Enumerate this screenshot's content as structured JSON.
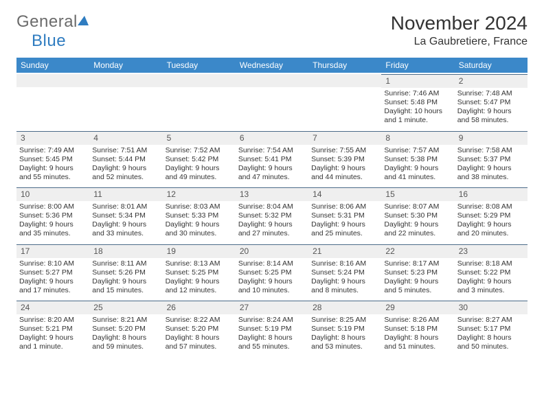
{
  "logo": {
    "text1": "General",
    "text2": "Blue"
  },
  "title": "November 2024",
  "location": "La Gaubretiere, France",
  "colors": {
    "header_bg": "#3b88c9",
    "header_text": "#ffffff",
    "daynum_bg": "#efefef",
    "daynum_border": "#4a6a88",
    "body_text": "#333333",
    "logo_gray": "#6b6b6b",
    "logo_blue": "#2f7cc0"
  },
  "typography": {
    "title_fontsize": 28,
    "location_fontsize": 16,
    "dayhead_fontsize": 12,
    "cell_fontsize": 10.5,
    "logo_fontsize": 24
  },
  "day_headers": [
    "Sunday",
    "Monday",
    "Tuesday",
    "Wednesday",
    "Thursday",
    "Friday",
    "Saturday"
  ],
  "weeks": [
    [
      {
        "n": "",
        "sr": "",
        "ss": "",
        "dl": ""
      },
      {
        "n": "",
        "sr": "",
        "ss": "",
        "dl": ""
      },
      {
        "n": "",
        "sr": "",
        "ss": "",
        "dl": ""
      },
      {
        "n": "",
        "sr": "",
        "ss": "",
        "dl": ""
      },
      {
        "n": "",
        "sr": "",
        "ss": "",
        "dl": ""
      },
      {
        "n": "1",
        "sr": "Sunrise: 7:46 AM",
        "ss": "Sunset: 5:48 PM",
        "dl": "Daylight: 10 hours and 1 minute."
      },
      {
        "n": "2",
        "sr": "Sunrise: 7:48 AM",
        "ss": "Sunset: 5:47 PM",
        "dl": "Daylight: 9 hours and 58 minutes."
      }
    ],
    [
      {
        "n": "3",
        "sr": "Sunrise: 7:49 AM",
        "ss": "Sunset: 5:45 PM",
        "dl": "Daylight: 9 hours and 55 minutes."
      },
      {
        "n": "4",
        "sr": "Sunrise: 7:51 AM",
        "ss": "Sunset: 5:44 PM",
        "dl": "Daylight: 9 hours and 52 minutes."
      },
      {
        "n": "5",
        "sr": "Sunrise: 7:52 AM",
        "ss": "Sunset: 5:42 PM",
        "dl": "Daylight: 9 hours and 49 minutes."
      },
      {
        "n": "6",
        "sr": "Sunrise: 7:54 AM",
        "ss": "Sunset: 5:41 PM",
        "dl": "Daylight: 9 hours and 47 minutes."
      },
      {
        "n": "7",
        "sr": "Sunrise: 7:55 AM",
        "ss": "Sunset: 5:39 PM",
        "dl": "Daylight: 9 hours and 44 minutes."
      },
      {
        "n": "8",
        "sr": "Sunrise: 7:57 AM",
        "ss": "Sunset: 5:38 PM",
        "dl": "Daylight: 9 hours and 41 minutes."
      },
      {
        "n": "9",
        "sr": "Sunrise: 7:58 AM",
        "ss": "Sunset: 5:37 PM",
        "dl": "Daylight: 9 hours and 38 minutes."
      }
    ],
    [
      {
        "n": "10",
        "sr": "Sunrise: 8:00 AM",
        "ss": "Sunset: 5:36 PM",
        "dl": "Daylight: 9 hours and 35 minutes."
      },
      {
        "n": "11",
        "sr": "Sunrise: 8:01 AM",
        "ss": "Sunset: 5:34 PM",
        "dl": "Daylight: 9 hours and 33 minutes."
      },
      {
        "n": "12",
        "sr": "Sunrise: 8:03 AM",
        "ss": "Sunset: 5:33 PM",
        "dl": "Daylight: 9 hours and 30 minutes."
      },
      {
        "n": "13",
        "sr": "Sunrise: 8:04 AM",
        "ss": "Sunset: 5:32 PM",
        "dl": "Daylight: 9 hours and 27 minutes."
      },
      {
        "n": "14",
        "sr": "Sunrise: 8:06 AM",
        "ss": "Sunset: 5:31 PM",
        "dl": "Daylight: 9 hours and 25 minutes."
      },
      {
        "n": "15",
        "sr": "Sunrise: 8:07 AM",
        "ss": "Sunset: 5:30 PM",
        "dl": "Daylight: 9 hours and 22 minutes."
      },
      {
        "n": "16",
        "sr": "Sunrise: 8:08 AM",
        "ss": "Sunset: 5:29 PM",
        "dl": "Daylight: 9 hours and 20 minutes."
      }
    ],
    [
      {
        "n": "17",
        "sr": "Sunrise: 8:10 AM",
        "ss": "Sunset: 5:27 PM",
        "dl": "Daylight: 9 hours and 17 minutes."
      },
      {
        "n": "18",
        "sr": "Sunrise: 8:11 AM",
        "ss": "Sunset: 5:26 PM",
        "dl": "Daylight: 9 hours and 15 minutes."
      },
      {
        "n": "19",
        "sr": "Sunrise: 8:13 AM",
        "ss": "Sunset: 5:25 PM",
        "dl": "Daylight: 9 hours and 12 minutes."
      },
      {
        "n": "20",
        "sr": "Sunrise: 8:14 AM",
        "ss": "Sunset: 5:25 PM",
        "dl": "Daylight: 9 hours and 10 minutes."
      },
      {
        "n": "21",
        "sr": "Sunrise: 8:16 AM",
        "ss": "Sunset: 5:24 PM",
        "dl": "Daylight: 9 hours and 8 minutes."
      },
      {
        "n": "22",
        "sr": "Sunrise: 8:17 AM",
        "ss": "Sunset: 5:23 PM",
        "dl": "Daylight: 9 hours and 5 minutes."
      },
      {
        "n": "23",
        "sr": "Sunrise: 8:18 AM",
        "ss": "Sunset: 5:22 PM",
        "dl": "Daylight: 9 hours and 3 minutes."
      }
    ],
    [
      {
        "n": "24",
        "sr": "Sunrise: 8:20 AM",
        "ss": "Sunset: 5:21 PM",
        "dl": "Daylight: 9 hours and 1 minute."
      },
      {
        "n": "25",
        "sr": "Sunrise: 8:21 AM",
        "ss": "Sunset: 5:20 PM",
        "dl": "Daylight: 8 hours and 59 minutes."
      },
      {
        "n": "26",
        "sr": "Sunrise: 8:22 AM",
        "ss": "Sunset: 5:20 PM",
        "dl": "Daylight: 8 hours and 57 minutes."
      },
      {
        "n": "27",
        "sr": "Sunrise: 8:24 AM",
        "ss": "Sunset: 5:19 PM",
        "dl": "Daylight: 8 hours and 55 minutes."
      },
      {
        "n": "28",
        "sr": "Sunrise: 8:25 AM",
        "ss": "Sunset: 5:19 PM",
        "dl": "Daylight: 8 hours and 53 minutes."
      },
      {
        "n": "29",
        "sr": "Sunrise: 8:26 AM",
        "ss": "Sunset: 5:18 PM",
        "dl": "Daylight: 8 hours and 51 minutes."
      },
      {
        "n": "30",
        "sr": "Sunrise: 8:27 AM",
        "ss": "Sunset: 5:17 PM",
        "dl": "Daylight: 8 hours and 50 minutes."
      }
    ]
  ]
}
